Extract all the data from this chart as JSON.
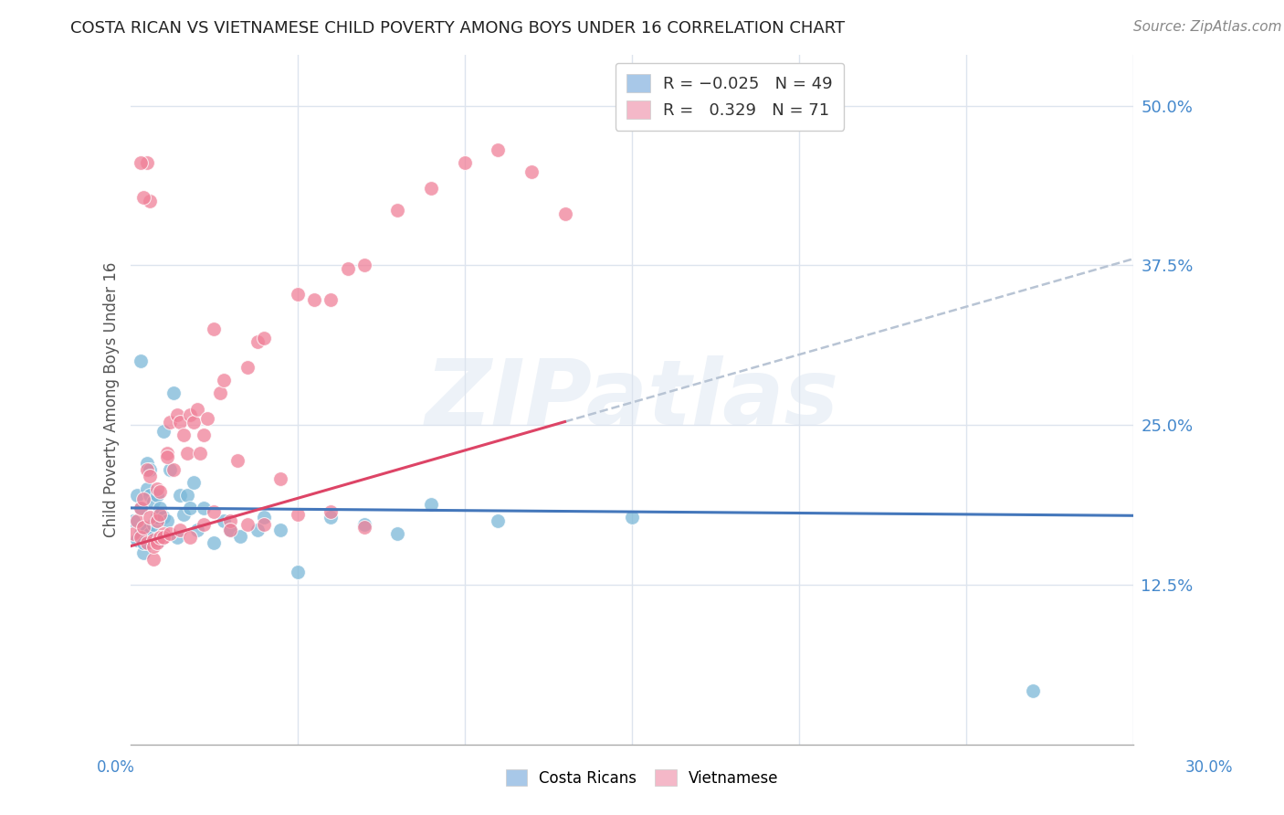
{
  "title": "COSTA RICAN VS VIETNAMESE CHILD POVERTY AMONG BOYS UNDER 16 CORRELATION CHART",
  "source": "Source: ZipAtlas.com",
  "ylabel": "Child Poverty Among Boys Under 16",
  "ytick_labels": [
    "12.5%",
    "25.0%",
    "37.5%",
    "50.0%"
  ],
  "ytick_values": [
    0.125,
    0.25,
    0.375,
    0.5
  ],
  "xlim": [
    0.0,
    0.3
  ],
  "ylim": [
    0.0,
    0.54
  ],
  "watermark": "ZIPatlas",
  "blue_color": "#7bb8d8",
  "pink_color": "#f08098",
  "blue_line_color": "#4477bb",
  "pink_line_color": "#dd4466",
  "dashed_line_color": "#b8c4d4",
  "background_color": "#ffffff",
  "grid_color": "#dde4ee",
  "legend_blue_color": "#a8c8e8",
  "legend_pink_color": "#f4b8c8",
  "cr_x": [
    0.001,
    0.002,
    0.002,
    0.003,
    0.003,
    0.004,
    0.004,
    0.005,
    0.005,
    0.005,
    0.006,
    0.006,
    0.006,
    0.007,
    0.007,
    0.008,
    0.008,
    0.009,
    0.009,
    0.01,
    0.01,
    0.011,
    0.012,
    0.013,
    0.014,
    0.015,
    0.016,
    0.017,
    0.018,
    0.019,
    0.02,
    0.022,
    0.025,
    0.028,
    0.03,
    0.033,
    0.038,
    0.04,
    0.045,
    0.05,
    0.06,
    0.07,
    0.08,
    0.09,
    0.11,
    0.15,
    0.003,
    0.004,
    0.27
  ],
  "cr_y": [
    0.175,
    0.195,
    0.16,
    0.165,
    0.185,
    0.17,
    0.15,
    0.168,
    0.2,
    0.22,
    0.165,
    0.195,
    0.215,
    0.172,
    0.19,
    0.178,
    0.195,
    0.16,
    0.185,
    0.178,
    0.245,
    0.175,
    0.215,
    0.275,
    0.162,
    0.195,
    0.18,
    0.195,
    0.185,
    0.205,
    0.168,
    0.185,
    0.158,
    0.175,
    0.168,
    0.163,
    0.168,
    0.178,
    0.168,
    0.135,
    0.178,
    0.172,
    0.165,
    0.188,
    0.175,
    0.178,
    0.3,
    0.158,
    0.042
  ],
  "vn_x": [
    0.001,
    0.002,
    0.003,
    0.003,
    0.004,
    0.004,
    0.005,
    0.005,
    0.006,
    0.006,
    0.007,
    0.007,
    0.008,
    0.008,
    0.009,
    0.009,
    0.01,
    0.01,
    0.011,
    0.012,
    0.013,
    0.014,
    0.015,
    0.016,
    0.017,
    0.018,
    0.019,
    0.02,
    0.021,
    0.022,
    0.023,
    0.025,
    0.027,
    0.028,
    0.03,
    0.032,
    0.035,
    0.038,
    0.04,
    0.045,
    0.05,
    0.055,
    0.06,
    0.065,
    0.07,
    0.08,
    0.09,
    0.1,
    0.11,
    0.12,
    0.13,
    0.005,
    0.006,
    0.007,
    0.008,
    0.009,
    0.01,
    0.011,
    0.012,
    0.003,
    0.004,
    0.015,
    0.018,
    0.022,
    0.025,
    0.03,
    0.035,
    0.04,
    0.05,
    0.06,
    0.07
  ],
  "vn_y": [
    0.165,
    0.175,
    0.162,
    0.185,
    0.192,
    0.17,
    0.158,
    0.215,
    0.21,
    0.178,
    0.16,
    0.145,
    0.2,
    0.175,
    0.198,
    0.18,
    0.162,
    0.165,
    0.228,
    0.252,
    0.215,
    0.258,
    0.252,
    0.242,
    0.228,
    0.258,
    0.252,
    0.262,
    0.228,
    0.242,
    0.255,
    0.325,
    0.275,
    0.285,
    0.175,
    0.222,
    0.295,
    0.315,
    0.318,
    0.208,
    0.352,
    0.348,
    0.348,
    0.372,
    0.375,
    0.418,
    0.435,
    0.455,
    0.465,
    0.448,
    0.415,
    0.455,
    0.425,
    0.155,
    0.158,
    0.162,
    0.162,
    0.225,
    0.165,
    0.455,
    0.428,
    0.168,
    0.162,
    0.172,
    0.182,
    0.168,
    0.172,
    0.172,
    0.18,
    0.182,
    0.17
  ]
}
